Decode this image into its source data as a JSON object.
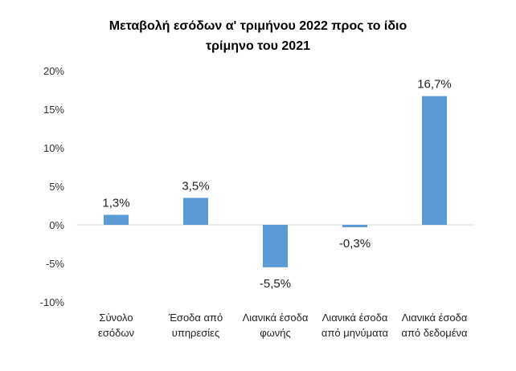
{
  "chart_data": {
    "type": "bar",
    "title_lines": [
      "Μεταβολή εσόδων α' τριμήνου 2022 προς το ίδιο",
      "τρίμηνο του 2021"
    ],
    "categories": [
      [
        "Σύνολο",
        "εσόδων"
      ],
      [
        "Έσοδα από",
        "υπηρεσίες"
      ],
      [
        "Λιανικά έσοδα",
        "φωνής"
      ],
      [
        "Λιανικά έσοδα",
        "από μηνύματα"
      ],
      [
        "Λιανικά έσοδα",
        "από δεδομένα"
      ]
    ],
    "values": [
      1.3,
      3.5,
      -5.5,
      -0.3,
      16.7
    ],
    "data_labels": [
      "1,3%",
      "3,5%",
      "-5,5%",
      "-0,3%",
      "16,7%"
    ],
    "ylim": [
      -10,
      20
    ],
    "y_ticks": [
      20,
      15,
      10,
      5,
      0,
      -5,
      -10
    ],
    "y_tick_labels": [
      "20%",
      "15%",
      "10%",
      "5%",
      "0%",
      "-5%",
      "-10%"
    ],
    "bar_color": "#5b9bd5",
    "axis_color": "#d9d9d9",
    "grid": false,
    "legend": "none"
  }
}
